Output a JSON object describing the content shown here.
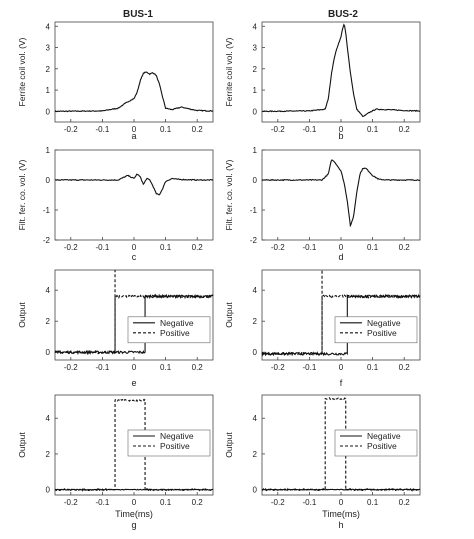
{
  "figure": {
    "column_titles": [
      "BUS-1",
      "BUS-2"
    ]
  },
  "chart_data": [
    {
      "type": "line",
      "panel": "a",
      "column": 0,
      "row": 0,
      "title": "",
      "xlabel": "",
      "ylabel": "Ferrite coil vol. (V)",
      "xlim": [
        -0.25,
        0.25
      ],
      "ylim": [
        -0.5,
        4.2
      ],
      "xticks": [
        -0.2,
        -0.1,
        0,
        0.1,
        0.2
      ],
      "xtick_labels": [
        "-0.2",
        "-0.1",
        "0",
        "0.1",
        "0.2"
      ],
      "yticks": [
        0,
        1,
        2,
        3,
        4
      ],
      "ytick_labels": [
        "0",
        "1",
        "2",
        "3",
        "4"
      ],
      "grid": false,
      "series": [
        {
          "dash": "solid",
          "noise": 0.02,
          "x": [
            -0.25,
            -0.1,
            -0.05,
            -0.02,
            0.0,
            0.01,
            0.02,
            0.03,
            0.04,
            0.05,
            0.06,
            0.07,
            0.08,
            0.09,
            0.1,
            0.12,
            0.15,
            0.18,
            0.2,
            0.25
          ],
          "y": [
            0.0,
            0.02,
            0.15,
            0.45,
            0.6,
            0.9,
            1.45,
            1.8,
            1.85,
            1.75,
            1.82,
            1.7,
            1.3,
            0.7,
            0.15,
            0.08,
            0.2,
            0.1,
            0.04,
            0.02
          ]
        }
      ]
    },
    {
      "type": "line",
      "panel": "b",
      "column": 1,
      "row": 0,
      "title": "",
      "xlabel": "",
      "ylabel": "Ferrite coil vol. (V)",
      "xlim": [
        -0.25,
        0.25
      ],
      "ylim": [
        -0.5,
        4.2
      ],
      "xticks": [
        -0.2,
        -0.1,
        0,
        0.1,
        0.2
      ],
      "xtick_labels": [
        "-0.2",
        "-0.1",
        "0",
        "0.1",
        "0.2"
      ],
      "yticks": [
        0,
        1,
        2,
        3,
        4
      ],
      "ytick_labels": [
        "0",
        "1",
        "2",
        "3",
        "4"
      ],
      "grid": false,
      "series": [
        {
          "dash": "solid",
          "noise": 0.02,
          "x": [
            -0.25,
            -0.1,
            -0.05,
            -0.04,
            -0.03,
            -0.02,
            -0.01,
            0.0,
            0.005,
            0.01,
            0.015,
            0.02,
            0.03,
            0.04,
            0.05,
            0.07,
            0.09,
            0.11,
            0.15,
            0.2,
            0.25
          ],
          "y": [
            0.0,
            0.02,
            0.1,
            0.6,
            1.8,
            2.6,
            3.1,
            3.5,
            3.9,
            4.1,
            3.7,
            3.0,
            1.8,
            0.8,
            0.1,
            -0.25,
            -0.05,
            0.1,
            0.08,
            0.04,
            0.02
          ]
        }
      ]
    },
    {
      "type": "line",
      "panel": "c",
      "column": 0,
      "row": 1,
      "title": "",
      "xlabel": "",
      "ylabel": "Filt. fer. co. vol. (V)",
      "xlim": [
        -0.25,
        0.25
      ],
      "ylim": [
        -2,
        1
      ],
      "xticks": [
        -0.2,
        -0.1,
        0,
        0.1,
        0.2
      ],
      "xtick_labels": [
        "-0.2",
        "-0.1",
        "0",
        "0.1",
        "0.2"
      ],
      "yticks": [
        -2,
        -1,
        0,
        1
      ],
      "ytick_labels": [
        "-2",
        "-1",
        "0",
        "1"
      ],
      "grid": false,
      "series": [
        {
          "dash": "solid",
          "noise": 0.015,
          "x": [
            -0.25,
            -0.05,
            -0.02,
            0.0,
            0.01,
            0.02,
            0.03,
            0.04,
            0.05,
            0.06,
            0.07,
            0.08,
            0.09,
            0.1,
            0.12,
            0.14,
            0.2,
            0.25
          ],
          "y": [
            0.0,
            0.0,
            0.15,
            0.05,
            0.2,
            0.1,
            -0.15,
            0.05,
            0.0,
            -0.2,
            -0.45,
            -0.5,
            -0.3,
            -0.05,
            0.05,
            0.02,
            0.0,
            0.0
          ]
        }
      ]
    },
    {
      "type": "line",
      "panel": "d",
      "column": 1,
      "row": 1,
      "title": "",
      "xlabel": "",
      "ylabel": "Filt. fer. co. vol. (V)",
      "xlim": [
        -0.25,
        0.25
      ],
      "ylim": [
        -2,
        1
      ],
      "xticks": [
        -0.2,
        -0.1,
        0,
        0.1,
        0.2
      ],
      "xtick_labels": [
        "-0.2",
        "-0.1",
        "0",
        "0.1",
        "0.2"
      ],
      "yticks": [
        -2,
        -1,
        0,
        1
      ],
      "ytick_labels": [
        "-2",
        "-1",
        "0",
        "1"
      ],
      "grid": false,
      "series": [
        {
          "dash": "solid",
          "noise": 0.015,
          "x": [
            -0.25,
            -0.06,
            -0.04,
            -0.03,
            -0.02,
            -0.01,
            0.0,
            0.01,
            0.02,
            0.03,
            0.04,
            0.05,
            0.06,
            0.07,
            0.08,
            0.1,
            0.12,
            0.15,
            0.2,
            0.25
          ],
          "y": [
            0.0,
            0.0,
            0.2,
            0.68,
            0.6,
            0.45,
            0.3,
            -0.1,
            -0.7,
            -1.55,
            -1.2,
            -0.4,
            0.2,
            0.4,
            0.38,
            0.15,
            0.02,
            0.0,
            0.0,
            0.0
          ]
        }
      ]
    },
    {
      "type": "line",
      "panel": "e",
      "column": 0,
      "row": 2,
      "title": "",
      "xlabel": "",
      "ylabel": "Output",
      "xlim": [
        -0.25,
        0.25
      ],
      "ylim": [
        -0.5,
        5.3
      ],
      "xticks": [
        -0.2,
        -0.1,
        0,
        0.1,
        0.2
      ],
      "xtick_labels": [
        "-0.2",
        "-0.1",
        "0",
        "0.1",
        "0.2"
      ],
      "yticks": [
        0,
        2,
        4
      ],
      "ytick_labels": [
        "0",
        "2",
        "4"
      ],
      "grid": false,
      "legend": {
        "placement": "right",
        "entries": [
          "Negative",
          "Positive"
        ]
      },
      "series": [
        {
          "name": "Negative",
          "dash": "solid",
          "noise": 0.08,
          "x": [
            -0.25,
            0.035,
            0.035,
            0.25
          ],
          "y": [
            0.0,
            0.0,
            3.6,
            3.6
          ]
        },
        {
          "name": "Positive",
          "dash": "dashed",
          "noise": 0.08,
          "x": [
            -0.25,
            -0.06,
            -0.06,
            0.25
          ],
          "y": [
            0.0,
            0.0,
            3.6,
            3.6
          ],
          "spike": [
            -0.06,
            5.3
          ]
        }
      ]
    },
    {
      "type": "line",
      "panel": "f",
      "column": 1,
      "row": 2,
      "title": "",
      "xlabel": "",
      "ylabel": "Output",
      "xlim": [
        -0.25,
        0.25
      ],
      "ylim": [
        -0.5,
        5.3
      ],
      "xticks": [
        -0.2,
        -0.1,
        0,
        0.1,
        0.2
      ],
      "xtick_labels": [
        "-0.2",
        "-0.1",
        "0",
        "0.1",
        "0.2"
      ],
      "yticks": [
        0,
        2,
        4
      ],
      "ytick_labels": [
        "0",
        "2",
        "4"
      ],
      "grid": false,
      "legend": {
        "placement": "right",
        "entries": [
          "Negative",
          "Positive"
        ]
      },
      "series": [
        {
          "name": "Negative",
          "dash": "solid",
          "noise": 0.08,
          "x": [
            -0.25,
            0.02,
            0.02,
            0.25
          ],
          "y": [
            -0.1,
            -0.1,
            3.6,
            3.6
          ]
        },
        {
          "name": "Positive",
          "dash": "dashed",
          "noise": 0.08,
          "x": [
            -0.25,
            -0.06,
            -0.06,
            0.25
          ],
          "y": [
            -0.1,
            -0.1,
            3.6,
            3.6
          ],
          "spike": [
            -0.06,
            5.3
          ]
        }
      ]
    },
    {
      "type": "line",
      "panel": "g",
      "column": 0,
      "row": 3,
      "title": "",
      "xlabel": "Time(ms)",
      "ylabel": "Output",
      "xlim": [
        -0.25,
        0.25
      ],
      "ylim": [
        -0.3,
        5.3
      ],
      "xticks": [
        -0.2,
        -0.1,
        0,
        0.1,
        0.2
      ],
      "xtick_labels": [
        "-0.2",
        "-0.1",
        "0",
        "0.1",
        "0.2"
      ],
      "yticks": [
        0,
        2,
        4
      ],
      "ytick_labels": [
        "0",
        "2",
        "4"
      ],
      "grid": false,
      "legend": {
        "placement": "right",
        "entries": [
          "Negative",
          "Positive"
        ]
      },
      "series": [
        {
          "name": "Negative",
          "dash": "solid",
          "noise": 0.02,
          "x": [
            -0.25,
            0.25
          ],
          "y": [
            0.0,
            0.0
          ]
        },
        {
          "name": "Positive",
          "dash": "dashed",
          "noise": 0.05,
          "x": [
            -0.25,
            -0.06,
            -0.06,
            0.035,
            0.035,
            0.25
          ],
          "y": [
            0.0,
            0.0,
            5.0,
            5.0,
            0.0,
            0.0
          ]
        }
      ]
    },
    {
      "type": "line",
      "panel": "h",
      "column": 1,
      "row": 3,
      "title": "",
      "xlabel": "Time(ms)",
      "ylabel": "Output",
      "xlim": [
        -0.25,
        0.25
      ],
      "ylim": [
        -0.3,
        5.3
      ],
      "xticks": [
        -0.2,
        -0.1,
        0,
        0.1,
        0.2
      ],
      "xtick_labels": [
        "-0.2",
        "-0.1",
        "0",
        "0.1",
        "0.2"
      ],
      "yticks": [
        0,
        2,
        4
      ],
      "ytick_labels": [
        "0",
        "2",
        "4"
      ],
      "grid": false,
      "legend": {
        "placement": "right",
        "entries": [
          "Negative",
          "Positive"
        ]
      },
      "series": [
        {
          "name": "Negative",
          "dash": "solid",
          "noise": 0.02,
          "x": [
            -0.25,
            0.25
          ],
          "y": [
            0.0,
            0.0
          ]
        },
        {
          "name": "Positive",
          "dash": "dashed",
          "noise": 0.05,
          "x": [
            -0.25,
            -0.05,
            -0.05,
            0.015,
            0.015,
            0.25
          ],
          "y": [
            0.0,
            0.0,
            5.1,
            5.1,
            0.0,
            0.0
          ]
        }
      ]
    }
  ]
}
